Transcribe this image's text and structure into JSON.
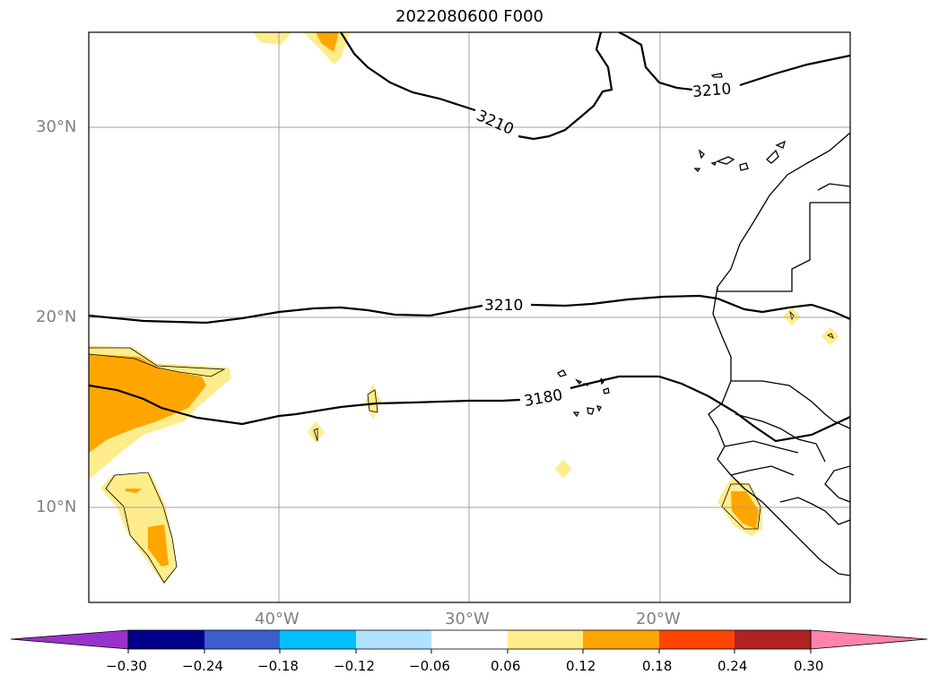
{
  "title": "2022080600 F000",
  "map": {
    "lat_ticks": [
      "30°N",
      "20°N",
      "10°N"
    ],
    "lon_ticks": [
      "40°W",
      "30°W",
      "20°W"
    ],
    "lat_range": [
      5,
      35
    ],
    "lon_range": [
      -50,
      -10
    ],
    "gridline_color": "#a0a0a0",
    "coastline_color": "#000000",
    "contours": [
      {
        "label": "3210"
      },
      {
        "label": "3210"
      },
      {
        "label": "3210"
      },
      {
        "label": "3180"
      }
    ]
  },
  "colorbar": {
    "colors": [
      "#9932cc",
      "#00008b",
      "#3a5fcd",
      "#00bfff",
      "#b0e2ff",
      "#ffffff",
      "#ffec8b",
      "#ffa500",
      "#ff4500",
      "#b22222",
      "#ff82ab"
    ],
    "tick_labels": [
      "−0.30",
      "−0.24",
      "−0.18",
      "−0.12",
      "−0.06",
      "0.06",
      "0.12",
      "0.18",
      "0.24",
      "0.30"
    ]
  }
}
